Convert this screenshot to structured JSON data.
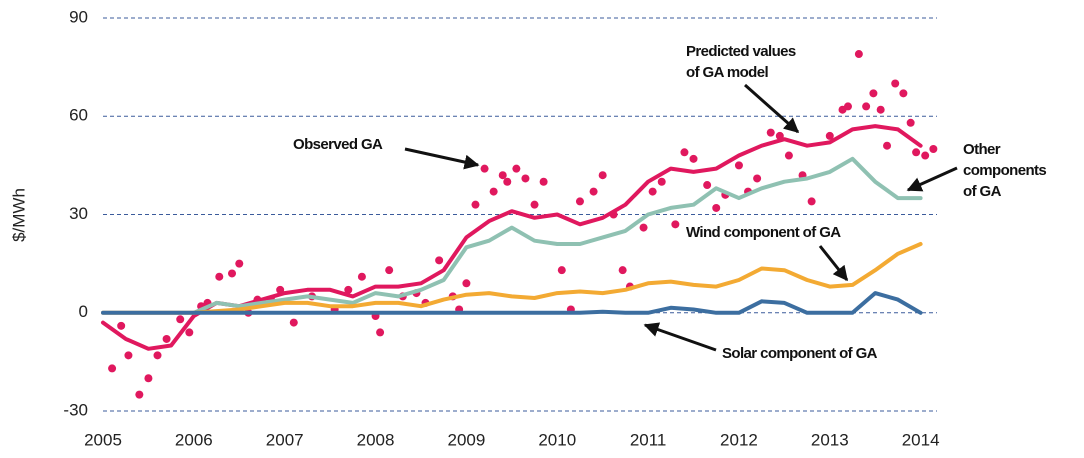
{
  "chart_data": {
    "type": "line",
    "y_label": "$/MWh",
    "xlim": [
      2005,
      2014.18
    ],
    "ylim": [
      -30,
      90
    ],
    "xticks": [
      2005,
      2006,
      2007,
      2008,
      2009,
      2010,
      2011,
      2012,
      2013,
      2014
    ],
    "yticks": [
      -30,
      0,
      30,
      60,
      90
    ],
    "grid": true,
    "x": [
      2005,
      2005.25,
      2005.5,
      2005.75,
      2006,
      2006.25,
      2006.5,
      2006.75,
      2007,
      2007.25,
      2007.5,
      2007.75,
      2008,
      2008.25,
      2008.5,
      2008.75,
      2009,
      2009.25,
      2009.5,
      2009.75,
      2010,
      2010.25,
      2010.5,
      2010.75,
      2011,
      2011.25,
      2011.5,
      2011.75,
      2012,
      2012.25,
      2012.5,
      2012.75,
      2013,
      2013.25,
      2013.5,
      2013.75,
      2014
    ],
    "series": [
      {
        "type": "scatter",
        "color": "#e0185e",
        "x": [
          2005.1,
          2005.2,
          2005.28,
          2005.4,
          2005.5,
          2005.6,
          2005.7,
          2005.85,
          2005.95,
          2006.08,
          2006.15,
          2006.28,
          2006.42,
          2006.5,
          2006.6,
          2006.7,
          2006.85,
          2006.95,
          2007.1,
          2007.3,
          2007.55,
          2007.7,
          2007.85,
          2008.0,
          2008.05,
          2008.15,
          2008.3,
          2008.45,
          2008.55,
          2008.7,
          2008.85,
          2008.92,
          2009.0,
          2009.1,
          2009.2,
          2009.3,
          2009.4,
          2009.45,
          2009.55,
          2009.65,
          2009.75,
          2009.85,
          2010.05,
          2010.15,
          2010.25,
          2010.4,
          2010.5,
          2010.62,
          2010.72,
          2010.8,
          2010.95,
          2011.05,
          2011.15,
          2011.3,
          2011.4,
          2011.5,
          2011.65,
          2011.75,
          2011.85,
          2012.0,
          2012.1,
          2012.2,
          2012.35,
          2012.45,
          2012.55,
          2012.7,
          2012.8,
          2013.0,
          2013.14,
          2013.2,
          2013.32,
          2013.4,
          2013.48,
          2013.56,
          2013.63,
          2013.72,
          2013.81,
          2013.89,
          2013.95,
          2014.05,
          2014.14
        ],
        "values": [
          -17,
          -4,
          -13,
          -25,
          -20,
          -13,
          -8,
          -2,
          -6,
          2,
          3,
          11,
          12,
          15,
          0,
          4,
          4,
          7,
          -3,
          5,
          1,
          7,
          11,
          -1,
          -6,
          13,
          5,
          6,
          3,
          16,
          5,
          1,
          9,
          33,
          44,
          37,
          42,
          40,
          44,
          41,
          33,
          40,
          13,
          1,
          34,
          37,
          42,
          30,
          13,
          8,
          26,
          37,
          40,
          27,
          49,
          47,
          39,
          32,
          36,
          45,
          37,
          41,
          55,
          54,
          48,
          42,
          34,
          54,
          62,
          63,
          79,
          63,
          67,
          62,
          51,
          70,
          67,
          58,
          49,
          48,
          50
        ]
      },
      {
        "color": "#e0185e",
        "width": 4,
        "values": [
          -3,
          -8,
          -11,
          -10,
          -1,
          3,
          2,
          4,
          6,
          7,
          7,
          5,
          8,
          8,
          9,
          13,
          23,
          28,
          31,
          29,
          30,
          27,
          29,
          33,
          40,
          44,
          43,
          44,
          48,
          51,
          53,
          51,
          52,
          56,
          57,
          56,
          51
        ]
      },
      {
        "color": "#8fc1b2",
        "width": 4,
        "values": [
          null,
          null,
          null,
          null,
          0,
          3,
          2,
          3,
          4,
          5,
          4,
          3,
          6,
          5,
          7,
          10,
          20,
          22,
          26,
          22,
          21,
          21,
          23,
          25,
          30,
          32,
          33,
          38,
          35,
          38,
          40,
          41,
          43,
          47,
          40,
          35,
          35
        ]
      },
      {
        "color": "#f3aa33",
        "width": 4,
        "values": [
          0,
          0,
          0,
          0,
          0,
          0.5,
          1,
          2,
          3,
          3,
          2,
          2,
          3,
          3,
          2,
          4,
          5.5,
          6,
          5,
          4.5,
          6,
          6.5,
          6,
          7,
          9,
          9.5,
          8.5,
          8,
          10,
          13.5,
          13,
          10,
          8,
          8.5,
          13,
          18,
          21
        ]
      },
      {
        "color": "#3c6ea0",
        "width": 4,
        "values": [
          0,
          0,
          0,
          0,
          0,
          0,
          0,
          0,
          0,
          0,
          0,
          0,
          0,
          0,
          0,
          0,
          0,
          0,
          0,
          0,
          0,
          0,
          0.3,
          0,
          0,
          1.5,
          1,
          0,
          0,
          3.5,
          3,
          0,
          0,
          0,
          6,
          4,
          0
        ]
      }
    ],
    "annotations": [
      {
        "lines": [
          "Observed GA"
        ]
      },
      {
        "lines": [
          "Predicted values",
          "of GA model"
        ]
      },
      {
        "lines": [
          "Other",
          "components",
          "of GA"
        ]
      },
      {
        "lines": [
          "Wind component of GA"
        ]
      },
      {
        "lines": [
          "Solar component of GA"
        ]
      }
    ]
  }
}
